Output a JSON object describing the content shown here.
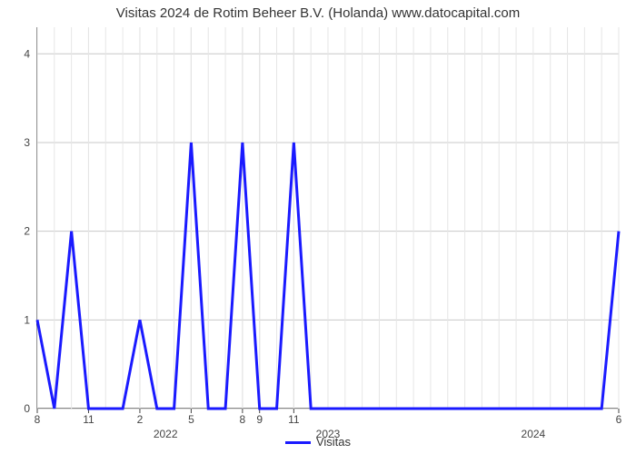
{
  "chart": {
    "type": "line",
    "title": "Visitas 2024 de Rotim Beheer B.V. (Holanda) www.datocapital.com",
    "title_fontsize": 15,
    "title_color": "#333333",
    "background_color": "#ffffff",
    "plot_border_color": "#444444",
    "grid_major_color": "#c8c8c8",
    "grid_minor_color": "#e6e6e6",
    "axis_tick_font_size": 12,
    "axis_tick_color": "#444444",
    "year_label_font_size": 12,
    "year_label_color": "#444444",
    "yaxis": {
      "min": 0,
      "max": 4.3,
      "major_ticks": [
        0,
        1,
        2,
        3,
        4
      ]
    },
    "xaxis": {
      "n_points": 35,
      "major_tick_positions": [
        0,
        3,
        6,
        9,
        12,
        13,
        15,
        34
      ],
      "major_tick_labels": [
        "8",
        "11",
        "2",
        "5",
        "8",
        "9",
        "11",
        "6"
      ],
      "year_positions": [
        7.5,
        17,
        29
      ],
      "year_labels": [
        "2022",
        "2023",
        "2024"
      ]
    },
    "series": {
      "name": "Visitas",
      "color": "#1a1aff",
      "line_width": 3,
      "y": [
        1,
        0,
        2,
        0,
        0,
        0,
        1,
        0,
        0,
        3,
        0,
        0,
        3,
        0,
        0,
        3,
        0,
        0,
        0,
        0,
        0,
        0,
        0,
        0,
        0,
        0,
        0,
        0,
        0,
        0,
        0,
        0,
        0,
        0,
        2
      ]
    }
  },
  "legend": {
    "label": "Visitas"
  }
}
